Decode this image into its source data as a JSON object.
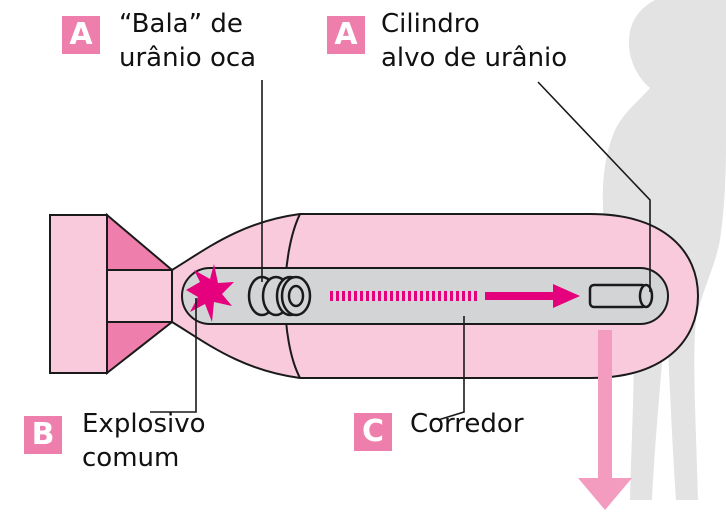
{
  "colors": {
    "body_fill": "#f8cadb",
    "body_outline": "#1a1a1a",
    "fin_dark": "#ee7fac",
    "corridor_fill": "#d3d4d6",
    "magenta": "#e5007e",
    "arrow_pink": "#f39cc0",
    "silhouette": "#e3e3e4"
  },
  "icons": {
    "explosion": "explosion-burst-icon",
    "bullet": "hollow-uranium-rings-icon",
    "target": "uranium-cylinder-icon",
    "person": "human-silhouette-icon"
  },
  "callouts": {
    "bullet": {
      "badge": "A",
      "line1": "“Bala” de",
      "line2": "urânio oca"
    },
    "target": {
      "badge": "A",
      "line1": "Cilindro",
      "line2": "alvo de urânio"
    },
    "explosive": {
      "badge": "B",
      "line1": "Explosivo",
      "line2": "comum"
    },
    "corridor": {
      "badge": "C",
      "line1": "Corredor"
    }
  }
}
